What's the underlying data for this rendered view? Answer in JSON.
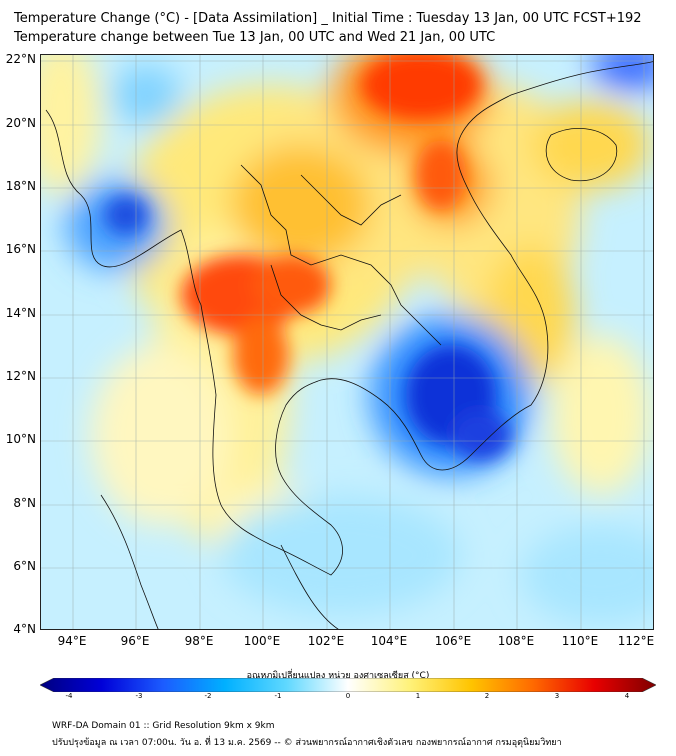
{
  "title_line1": "Temperature Change (°C) - [Data Assimilation] _ Initial Time : Tuesday 13 Jan, 00 UTC FCST+192",
  "title_line2": "Temperature change between Tue 13 Jan, 00 UTC and Wed 21 Jan, 00 UTC",
  "lat_labels": [
    "22°N",
    "20°N",
    "18°N",
    "16°N",
    "14°N",
    "12°N",
    "10°N",
    "8°N",
    "6°N",
    "4°N"
  ],
  "lon_labels": [
    "94°E",
    "96°E",
    "98°E",
    "100°E",
    "102°E",
    "104°E",
    "106°E",
    "108°E",
    "110°E",
    "112°E"
  ],
  "colorbar": {
    "label": "อุณหภูมิเปลี่ยนแปลง หน่วย องศาเซลเซียส (°C)",
    "ticks": [
      "-4",
      "-3",
      "-2",
      "-1",
      "0",
      "1",
      "2",
      "3",
      "4"
    ],
    "colors": [
      "#00007f",
      "#0000d8",
      "#1c5cff",
      "#00b0ff",
      "#5fd8ff",
      "#ffffff",
      "#fff27a",
      "#ffc400",
      "#ff6a00",
      "#e80000",
      "#7f0000"
    ]
  },
  "footer_line1": "WRF-DA Domain 01 :: Grid Resolution 9km x 9km",
  "footer_line2": "ปรับปรุงข้อมูล ณ เวลา 07:00น. วัน อ. ที่ 13 ม.ค. 2569 -- © ส่วนพยากรณ์อากาศเชิงตัวเลข กองพยากรณ์อากาศ กรมอุตุนิยมวิทยา"
}
